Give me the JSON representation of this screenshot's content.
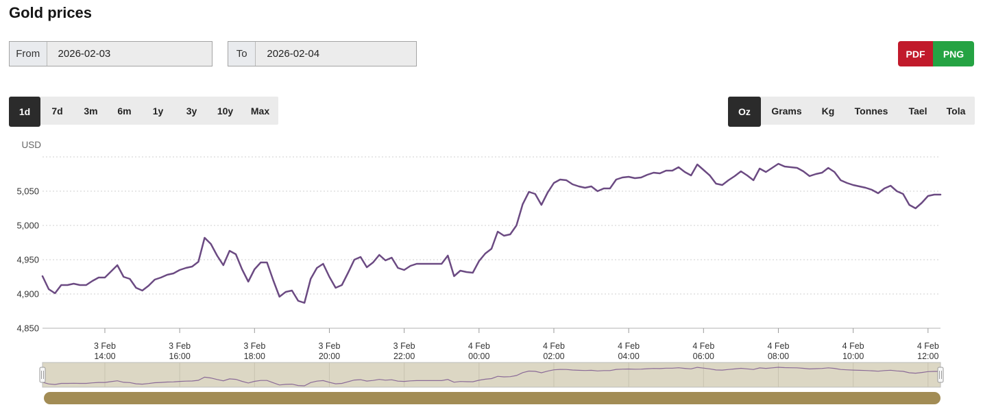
{
  "header": {
    "title": "Gold prices"
  },
  "controls": {
    "from_label": "From",
    "from_value": "2026-02-03",
    "to_label": "To",
    "to_value": "2026-02-04",
    "pdf_label": "PDF",
    "png_label": "PNG"
  },
  "range_tabs": {
    "active": "1d",
    "items": [
      "1d",
      "7d",
      "3m",
      "6m",
      "1y",
      "3y",
      "10y",
      "Max"
    ]
  },
  "unit_tabs": {
    "active": "Oz",
    "items": [
      "Oz",
      "Grams",
      "Kg",
      "Tonnes",
      "Tael",
      "Tola"
    ]
  },
  "colors": {
    "line": "#6b4a82",
    "navigator_line": "#8a6a97",
    "navigator_fill": "#dcd7c4",
    "navigator_border": "#bdbdbd",
    "scrollbar": "#a28c55",
    "pdf_red": "#c11a2b",
    "png_green": "#25a343",
    "tab_active_bg": "#2b2b2b",
    "gridline": "#cfcfcf",
    "axis_line": "#b0b0b0",
    "axis_label": "#333333",
    "currency_label": "#666666"
  },
  "chart_data": {
    "type": "line",
    "title": "Gold prices",
    "ylabel": "USD",
    "unit": "Oz",
    "x_start": "2026-02-03 12:20",
    "x_end": "2026-02-04 12:20",
    "interval_minutes": 10,
    "ylim": [
      4850,
      5100
    ],
    "grid": "horizontal-dotted",
    "legend": "none",
    "y_ticks": [
      {
        "value": 5100,
        "label": ""
      },
      {
        "value": 5050,
        "label": "5,050"
      },
      {
        "value": 5000,
        "label": "5,000"
      },
      {
        "value": 4950,
        "label": "4,950"
      },
      {
        "value": 4900,
        "label": "4,900"
      },
      {
        "value": 4850,
        "label": "4,850"
      }
    ],
    "x_ticks": [
      {
        "minutes": 100,
        "line1": "3 Feb",
        "line2": "14:00"
      },
      {
        "minutes": 220,
        "line1": "3 Feb",
        "line2": "16:00"
      },
      {
        "minutes": 340,
        "line1": "3 Feb",
        "line2": "18:00"
      },
      {
        "minutes": 460,
        "line1": "3 Feb",
        "line2": "20:00"
      },
      {
        "minutes": 580,
        "line1": "3 Feb",
        "line2": "22:00"
      },
      {
        "minutes": 700,
        "line1": "4 Feb",
        "line2": "00:00"
      },
      {
        "minutes": 820,
        "line1": "4 Feb",
        "line2": "02:00"
      },
      {
        "minutes": 940,
        "line1": "4 Feb",
        "line2": "04:00"
      },
      {
        "minutes": 1060,
        "line1": "4 Feb",
        "line2": "06:00"
      },
      {
        "minutes": 1180,
        "line1": "4 Feb",
        "line2": "08:00"
      },
      {
        "minutes": 1300,
        "line1": "4 Feb",
        "line2": "10:00"
      },
      {
        "minutes": 1420,
        "line1": "4 Feb",
        "line2": "12:00"
      }
    ],
    "values": [
      4926,
      4907,
      4901,
      4913,
      4913,
      4915,
      4913,
      4913,
      4919,
      4924,
      4924,
      4933,
      4942,
      4925,
      4922,
      4909,
      4905,
      4912,
      4921,
      4924,
      4928,
      4930,
      4935,
      4938,
      4940,
      4947,
      4982,
      4973,
      4956,
      4942,
      4963,
      4958,
      4936,
      4918,
      4936,
      4946,
      4946,
      4920,
      4896,
      4903,
      4905,
      4890,
      4887,
      4922,
      4938,
      4944,
      4925,
      4909,
      4913,
      4931,
      4950,
      4954,
      4939,
      4946,
      4957,
      4949,
      4953,
      4938,
      4935,
      4941,
      4944,
      4944,
      4944,
      4944,
      4944,
      4956,
      4926,
      4934,
      4932,
      4931,
      4948,
      4959,
      4966,
      4991,
      4985,
      4987,
      5000,
      5031,
      5049,
      5046,
      5030,
      5048,
      5062,
      5067,
      5066,
      5060,
      5057,
      5055,
      5057,
      5050,
      5054,
      5054,
      5067,
      5070,
      5071,
      5069,
      5070,
      5074,
      5077,
      5076,
      5080,
      5080,
      5085,
      5078,
      5073,
      5089,
      5081,
      5073,
      5061,
      5059,
      5066,
      5072,
      5079,
      5073,
      5066,
      5083,
      5078,
      5084,
      5090,
      5086,
      5085,
      5084,
      5079,
      5072,
      5075,
      5077,
      5084,
      5078,
      5066,
      5062,
      5059,
      5057,
      5055,
      5052,
      5047,
      5054,
      5058,
      5050,
      5046,
      5030,
      5025,
      5033,
      5043,
      5045,
      5045
    ]
  }
}
